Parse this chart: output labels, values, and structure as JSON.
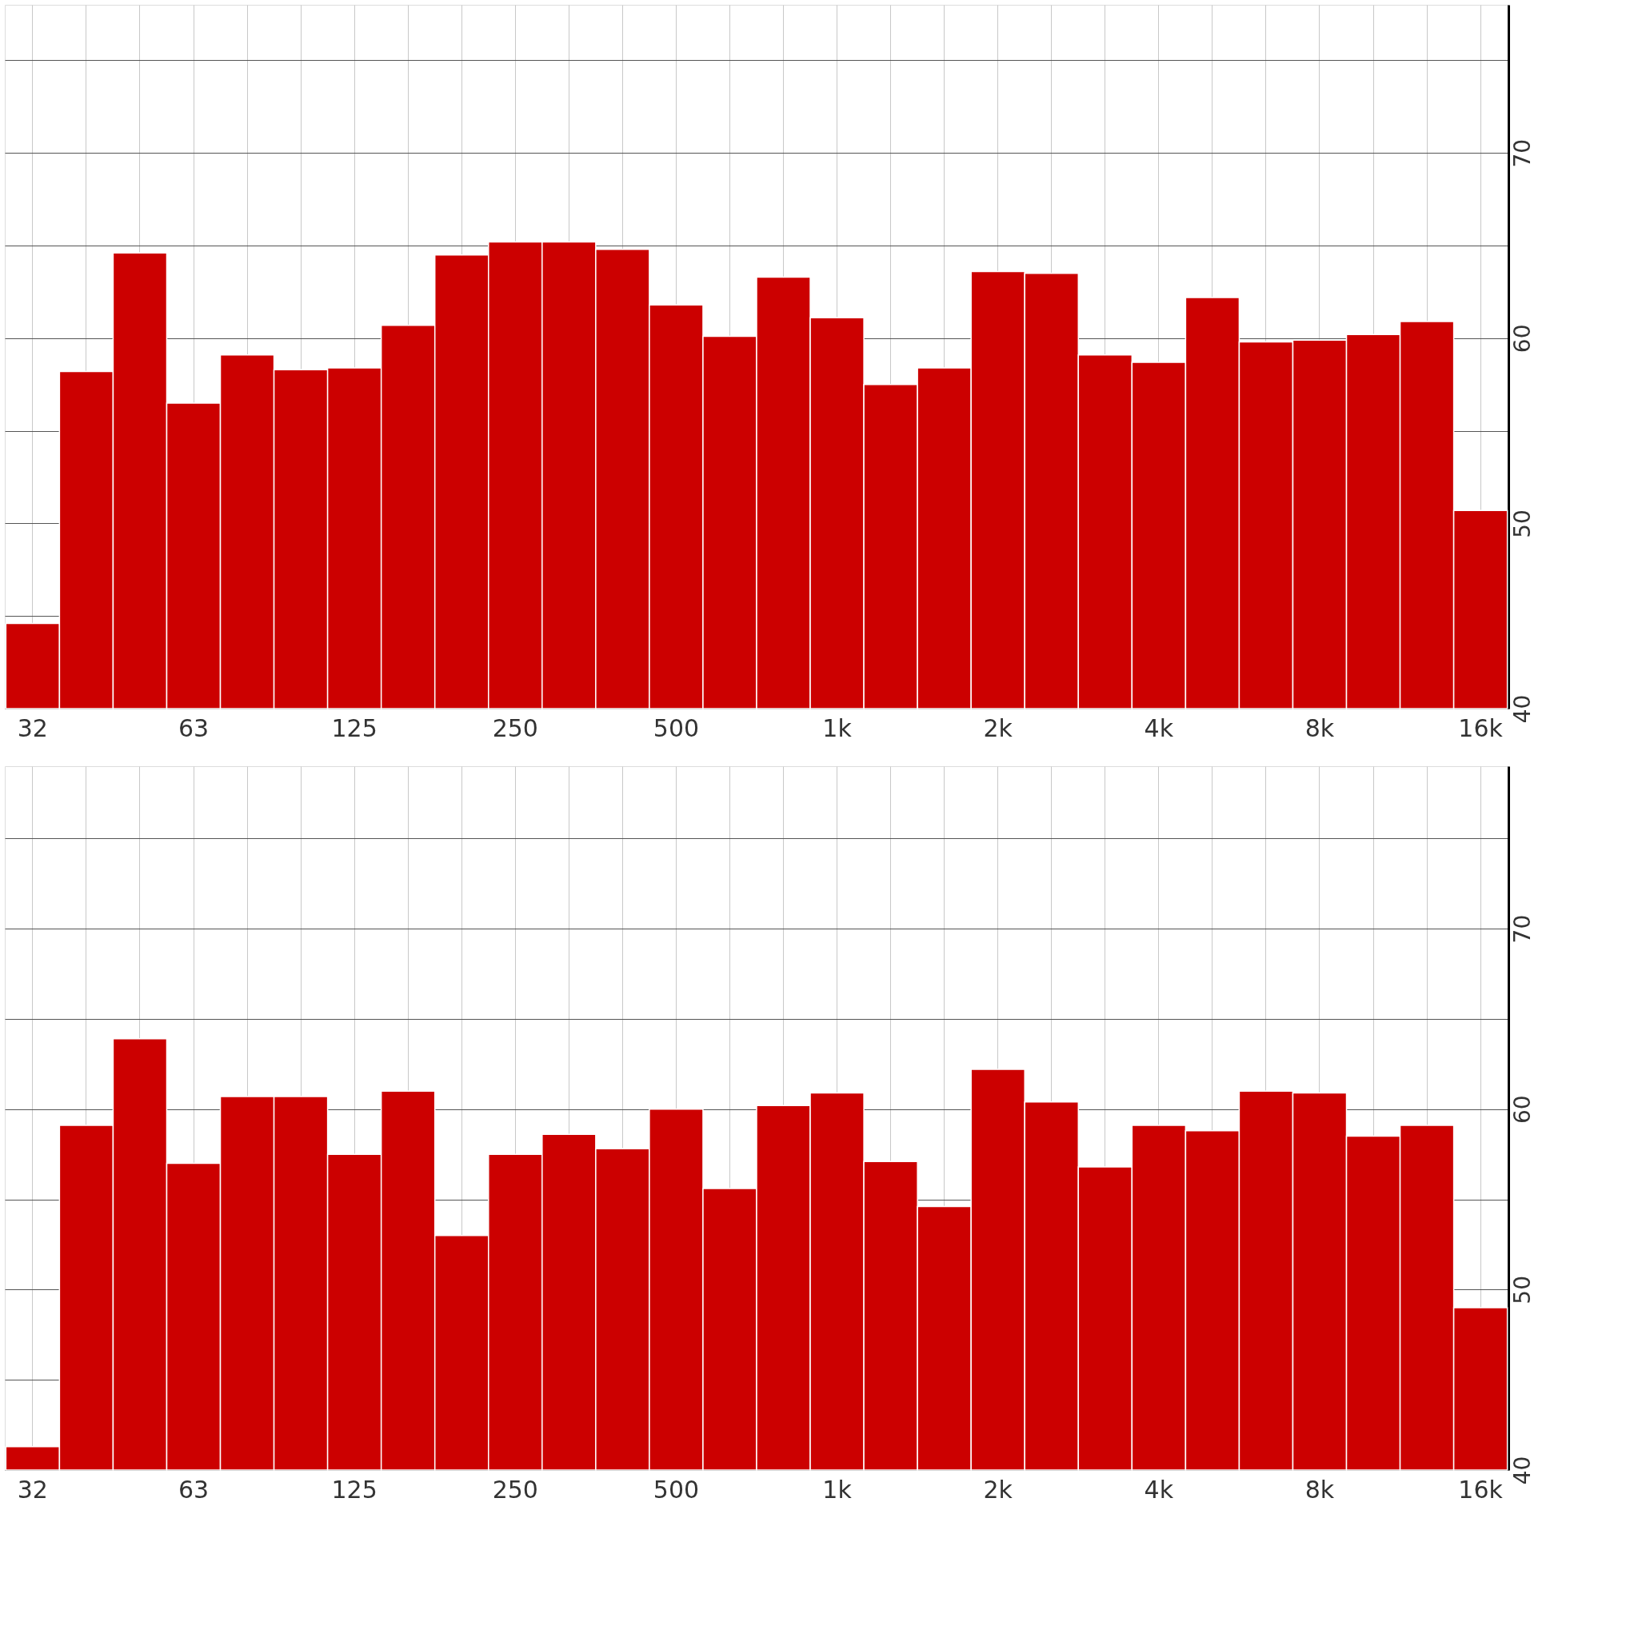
{
  "chart_data": [
    {
      "type": "bar",
      "categories": [
        "32",
        null,
        null,
        "63",
        null,
        null,
        "125",
        null,
        null,
        "250",
        null,
        null,
        "500",
        null,
        null,
        "1k",
        null,
        null,
        "2k",
        null,
        null,
        "4k",
        null,
        null,
        "8k",
        null,
        null,
        "16k"
      ],
      "series": [
        {
          "color": "#cc0000",
          "values": [
            44.6,
            58.2,
            64.6,
            56.5,
            59.1,
            58.3,
            58.4,
            60.7,
            64.5,
            65.2,
            65.2,
            64.8,
            61.8,
            60.1,
            63.3,
            61.1,
            57.5,
            58.4,
            63.6,
            63.5,
            59.1,
            58.7,
            62.2,
            59.8,
            59.9,
            60.2,
            60.9,
            50.7
          ]
        }
      ],
      "ylim": [
        40,
        78
      ],
      "yticks": [
        40,
        {
          "value": 45,
          "label": null
        },
        50,
        {
          "value": 55,
          "label": null
        },
        60,
        {
          "value": 65,
          "label": null
        },
        70,
        {
          "value": 75,
          "label": null
        }
      ],
      "grid": true
    },
    {
      "type": "bar",
      "categories": [
        "32",
        null,
        null,
        "63",
        null,
        null,
        "125",
        null,
        null,
        "250",
        null,
        null,
        "500",
        null,
        null,
        "1k",
        null,
        null,
        "2k",
        null,
        null,
        "4k",
        null,
        null,
        "8k",
        null,
        null,
        "16k"
      ],
      "series": [
        {
          "color": "#cc0000",
          "values": [
            41.3,
            59.1,
            63.9,
            57.0,
            60.7,
            60.7,
            57.5,
            61.0,
            53.0,
            57.5,
            58.6,
            57.8,
            60.0,
            55.6,
            60.2,
            60.9,
            57.1,
            54.6,
            62.2,
            60.4,
            56.8,
            59.1,
            58.8,
            61.0,
            60.9,
            58.5,
            59.1,
            49.0
          ]
        }
      ],
      "ylim": [
        40,
        79
      ],
      "yticks": [
        40,
        {
          "value": 45,
          "label": null
        },
        50,
        {
          "value": 55,
          "label": null
        },
        60,
        {
          "value": 65,
          "label": null
        },
        70,
        {
          "value": 75,
          "label": null
        }
      ],
      "grid": true
    }
  ]
}
